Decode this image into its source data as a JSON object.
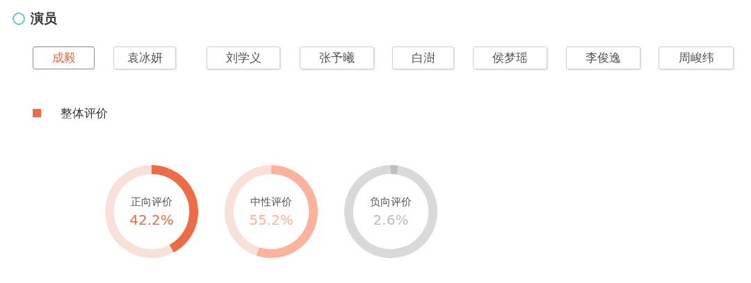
{
  "chart_data": [
    {
      "type": "other",
      "title": "演员",
      "categories": [
        "成毅",
        "袁冰妍",
        "刘学义",
        "张予曦",
        "白澍",
        "侯梦瑶",
        "李俊逸",
        "周峻纬"
      ],
      "subtitle": "整体评价"
    },
    {
      "type": "donut",
      "categories": [
        "正向评价",
        null
      ],
      "values": [
        42.2,
        57.8
      ],
      "colors": [
        "#ee6c45",
        "#f9e0d9"
      ],
      "value_labels": [
        "42.2%",
        null
      ]
    },
    {
      "type": "donut",
      "categories": [
        "中性评价",
        null
      ],
      "values": [
        55.2,
        44.8
      ],
      "colors": [
        "#fdb39b",
        "#f9e0d9"
      ],
      "value_labels": [
        "55.2%",
        null
      ]
    },
    {
      "type": "donut",
      "categories": [
        "负向评价",
        null
      ],
      "values": [
        2.6,
        97.4
      ],
      "colors": [
        "#bdbdbd",
        "#d9d9d9"
      ],
      "value_labels": [
        "2.6%",
        null
      ]
    }
  ]
}
